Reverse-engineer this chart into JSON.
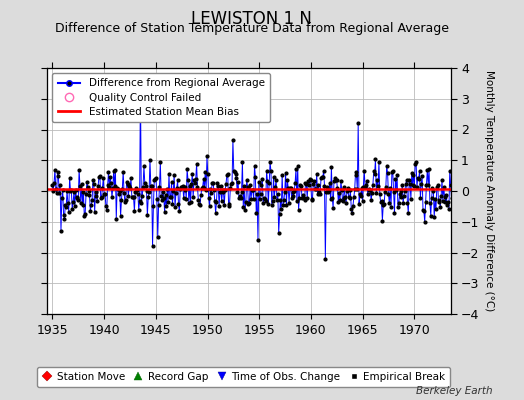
{
  "title": "LEWISTON 1 N",
  "subtitle": "Difference of Station Temperature Data from Regional Average",
  "ylabel_right": "Monthly Temperature Anomaly Difference (°C)",
  "bias": 0.05,
  "ylim": [
    -4,
    4
  ],
  "xlim": [
    1934.5,
    1973.5
  ],
  "xticks": [
    1935,
    1940,
    1945,
    1950,
    1955,
    1960,
    1965,
    1970
  ],
  "yticks": [
    -4,
    -3,
    -2,
    -1,
    0,
    1,
    2,
    3,
    4
  ],
  "line_color": "#0000FF",
  "bias_color": "#FF0000",
  "dot_color": "#000000",
  "background_color": "#DCDCDC",
  "plot_bg_color": "#FFFFFF",
  "grid_color": "#BBBBBB",
  "watermark": "Berkeley Earth",
  "title_fontsize": 12,
  "subtitle_fontsize": 9,
  "tick_fontsize": 9,
  "seed": 42
}
